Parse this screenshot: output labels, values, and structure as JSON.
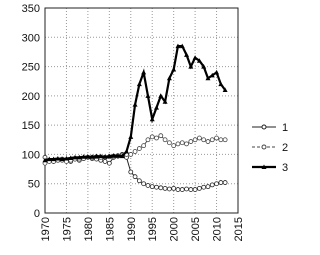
{
  "chart_data": {
    "type": "line",
    "x": [
      1970,
      1971,
      1972,
      1973,
      1974,
      1975,
      1976,
      1977,
      1978,
      1979,
      1980,
      1981,
      1982,
      1983,
      1984,
      1985,
      1986,
      1987,
      1988,
      1989,
      1990,
      1991,
      1992,
      1993,
      1994,
      1995,
      1996,
      1997,
      1998,
      1999,
      2000,
      2001,
      2002,
      2003,
      2004,
      2005,
      2006,
      2007,
      2008,
      2009,
      2010,
      2011,
      2012
    ],
    "series": [
      {
        "name": "1",
        "color": "#222222",
        "values": [
          95,
          90,
          88,
          90,
          92,
          90,
          88,
          92,
          90,
          93,
          95,
          93,
          92,
          90,
          88,
          85,
          95,
          97,
          100,
          95,
          70,
          62,
          55,
          50,
          47,
          45,
          44,
          43,
          42,
          41,
          42,
          40,
          40,
          41,
          40,
          40,
          42,
          44,
          45,
          48,
          50,
          52,
          52
        ]
      },
      {
        "name": "2",
        "color": "#444444",
        "values": [
          85,
          88,
          88,
          90,
          90,
          88,
          90,
          92,
          92,
          93,
          95,
          95,
          96,
          95,
          95,
          96,
          97,
          98,
          98,
          100,
          100,
          105,
          110,
          115,
          125,
          130,
          128,
          132,
          125,
          120,
          115,
          118,
          120,
          118,
          122,
          125,
          128,
          125,
          122,
          125,
          128,
          125,
          125
        ]
      },
      {
        "name": "3",
        "color": "#000000",
        "values": [
          90,
          92,
          92,
          93,
          92,
          93,
          94,
          95,
          95,
          96,
          96,
          96,
          97,
          97,
          96,
          97,
          98,
          98,
          97,
          105,
          130,
          185,
          220,
          240,
          200,
          160,
          180,
          200,
          190,
          230,
          245,
          285,
          285,
          270,
          250,
          265,
          260,
          250,
          230,
          235,
          240,
          220,
          210
        ]
      }
    ],
    "xlim": [
      1970,
      2015
    ],
    "xticks": [
      1970,
      1975,
      1980,
      1985,
      1990,
      1995,
      2000,
      2005,
      2010,
      2015
    ],
    "ylim": [
      0,
      350
    ],
    "yticks": [
      0,
      50,
      100,
      150,
      200,
      250,
      300,
      350
    ],
    "grid": true,
    "legend": "right"
  }
}
